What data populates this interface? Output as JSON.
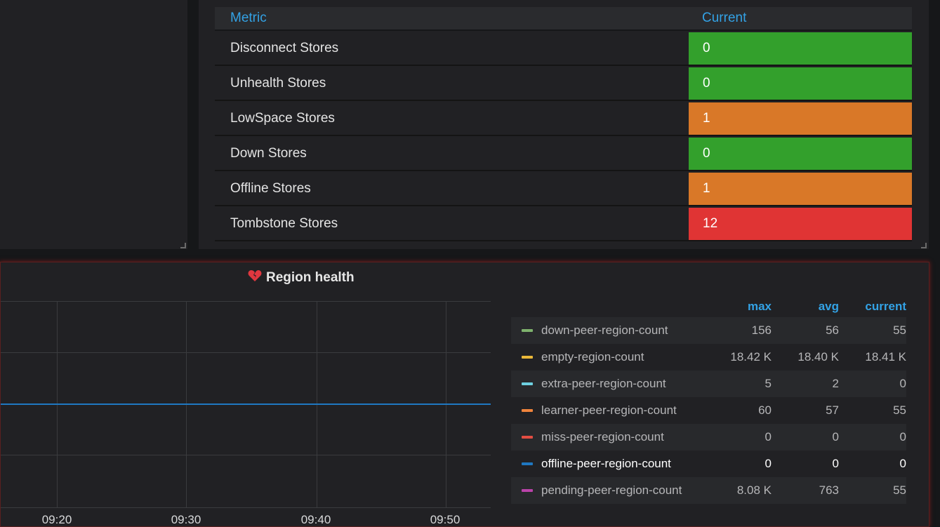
{
  "stores_table": {
    "headers": {
      "metric": "Metric",
      "current": "Current"
    },
    "rows": [
      {
        "metric": "Disconnect Stores",
        "current": "0",
        "color": "#33a02c"
      },
      {
        "metric": "Unhealth Stores",
        "current": "0",
        "color": "#33a02c"
      },
      {
        "metric": "LowSpace Stores",
        "current": "1",
        "color": "#d97828"
      },
      {
        "metric": "Down Stores",
        "current": "0",
        "color": "#33a02c"
      },
      {
        "metric": "Offline Stores",
        "current": "1",
        "color": "#d97828"
      },
      {
        "metric": "Tombstone Stores",
        "current": "12",
        "color": "#e03434"
      }
    ]
  },
  "region_health": {
    "title": "Region health",
    "title_icon": "broken-heart-icon",
    "x_ticks": [
      "09:20",
      "09:30",
      "09:40",
      "09:50"
    ],
    "legend_headers": {
      "max": "max",
      "avg": "avg",
      "current": "current"
    },
    "legend": [
      {
        "name": "down-peer-region-count",
        "max": "156",
        "avg": "56",
        "current": "55",
        "color": "#7eb26d"
      },
      {
        "name": "empty-region-count",
        "max": "18.42 K",
        "avg": "18.40 K",
        "current": "18.41 K",
        "color": "#eab839"
      },
      {
        "name": "extra-peer-region-count",
        "max": "5",
        "avg": "2",
        "current": "0",
        "color": "#6ed0e0"
      },
      {
        "name": "learner-peer-region-count",
        "max": "60",
        "avg": "57",
        "current": "55",
        "color": "#ef843c"
      },
      {
        "name": "miss-peer-region-count",
        "max": "0",
        "avg": "0",
        "current": "0",
        "color": "#e24d42"
      },
      {
        "name": "offline-peer-region-count",
        "max": "0",
        "avg": "0",
        "current": "0",
        "color": "#1f78c1"
      },
      {
        "name": "pending-peer-region-count",
        "max": "8.08 K",
        "avg": "763",
        "current": "55",
        "color": "#ba43a9"
      }
    ]
  },
  "colors": {
    "header_blue": "#33a2e5",
    "ok_green": "#33a02c",
    "warn_orange": "#d97828",
    "crit_red": "#e03434",
    "series_line": "#1f78c1"
  }
}
